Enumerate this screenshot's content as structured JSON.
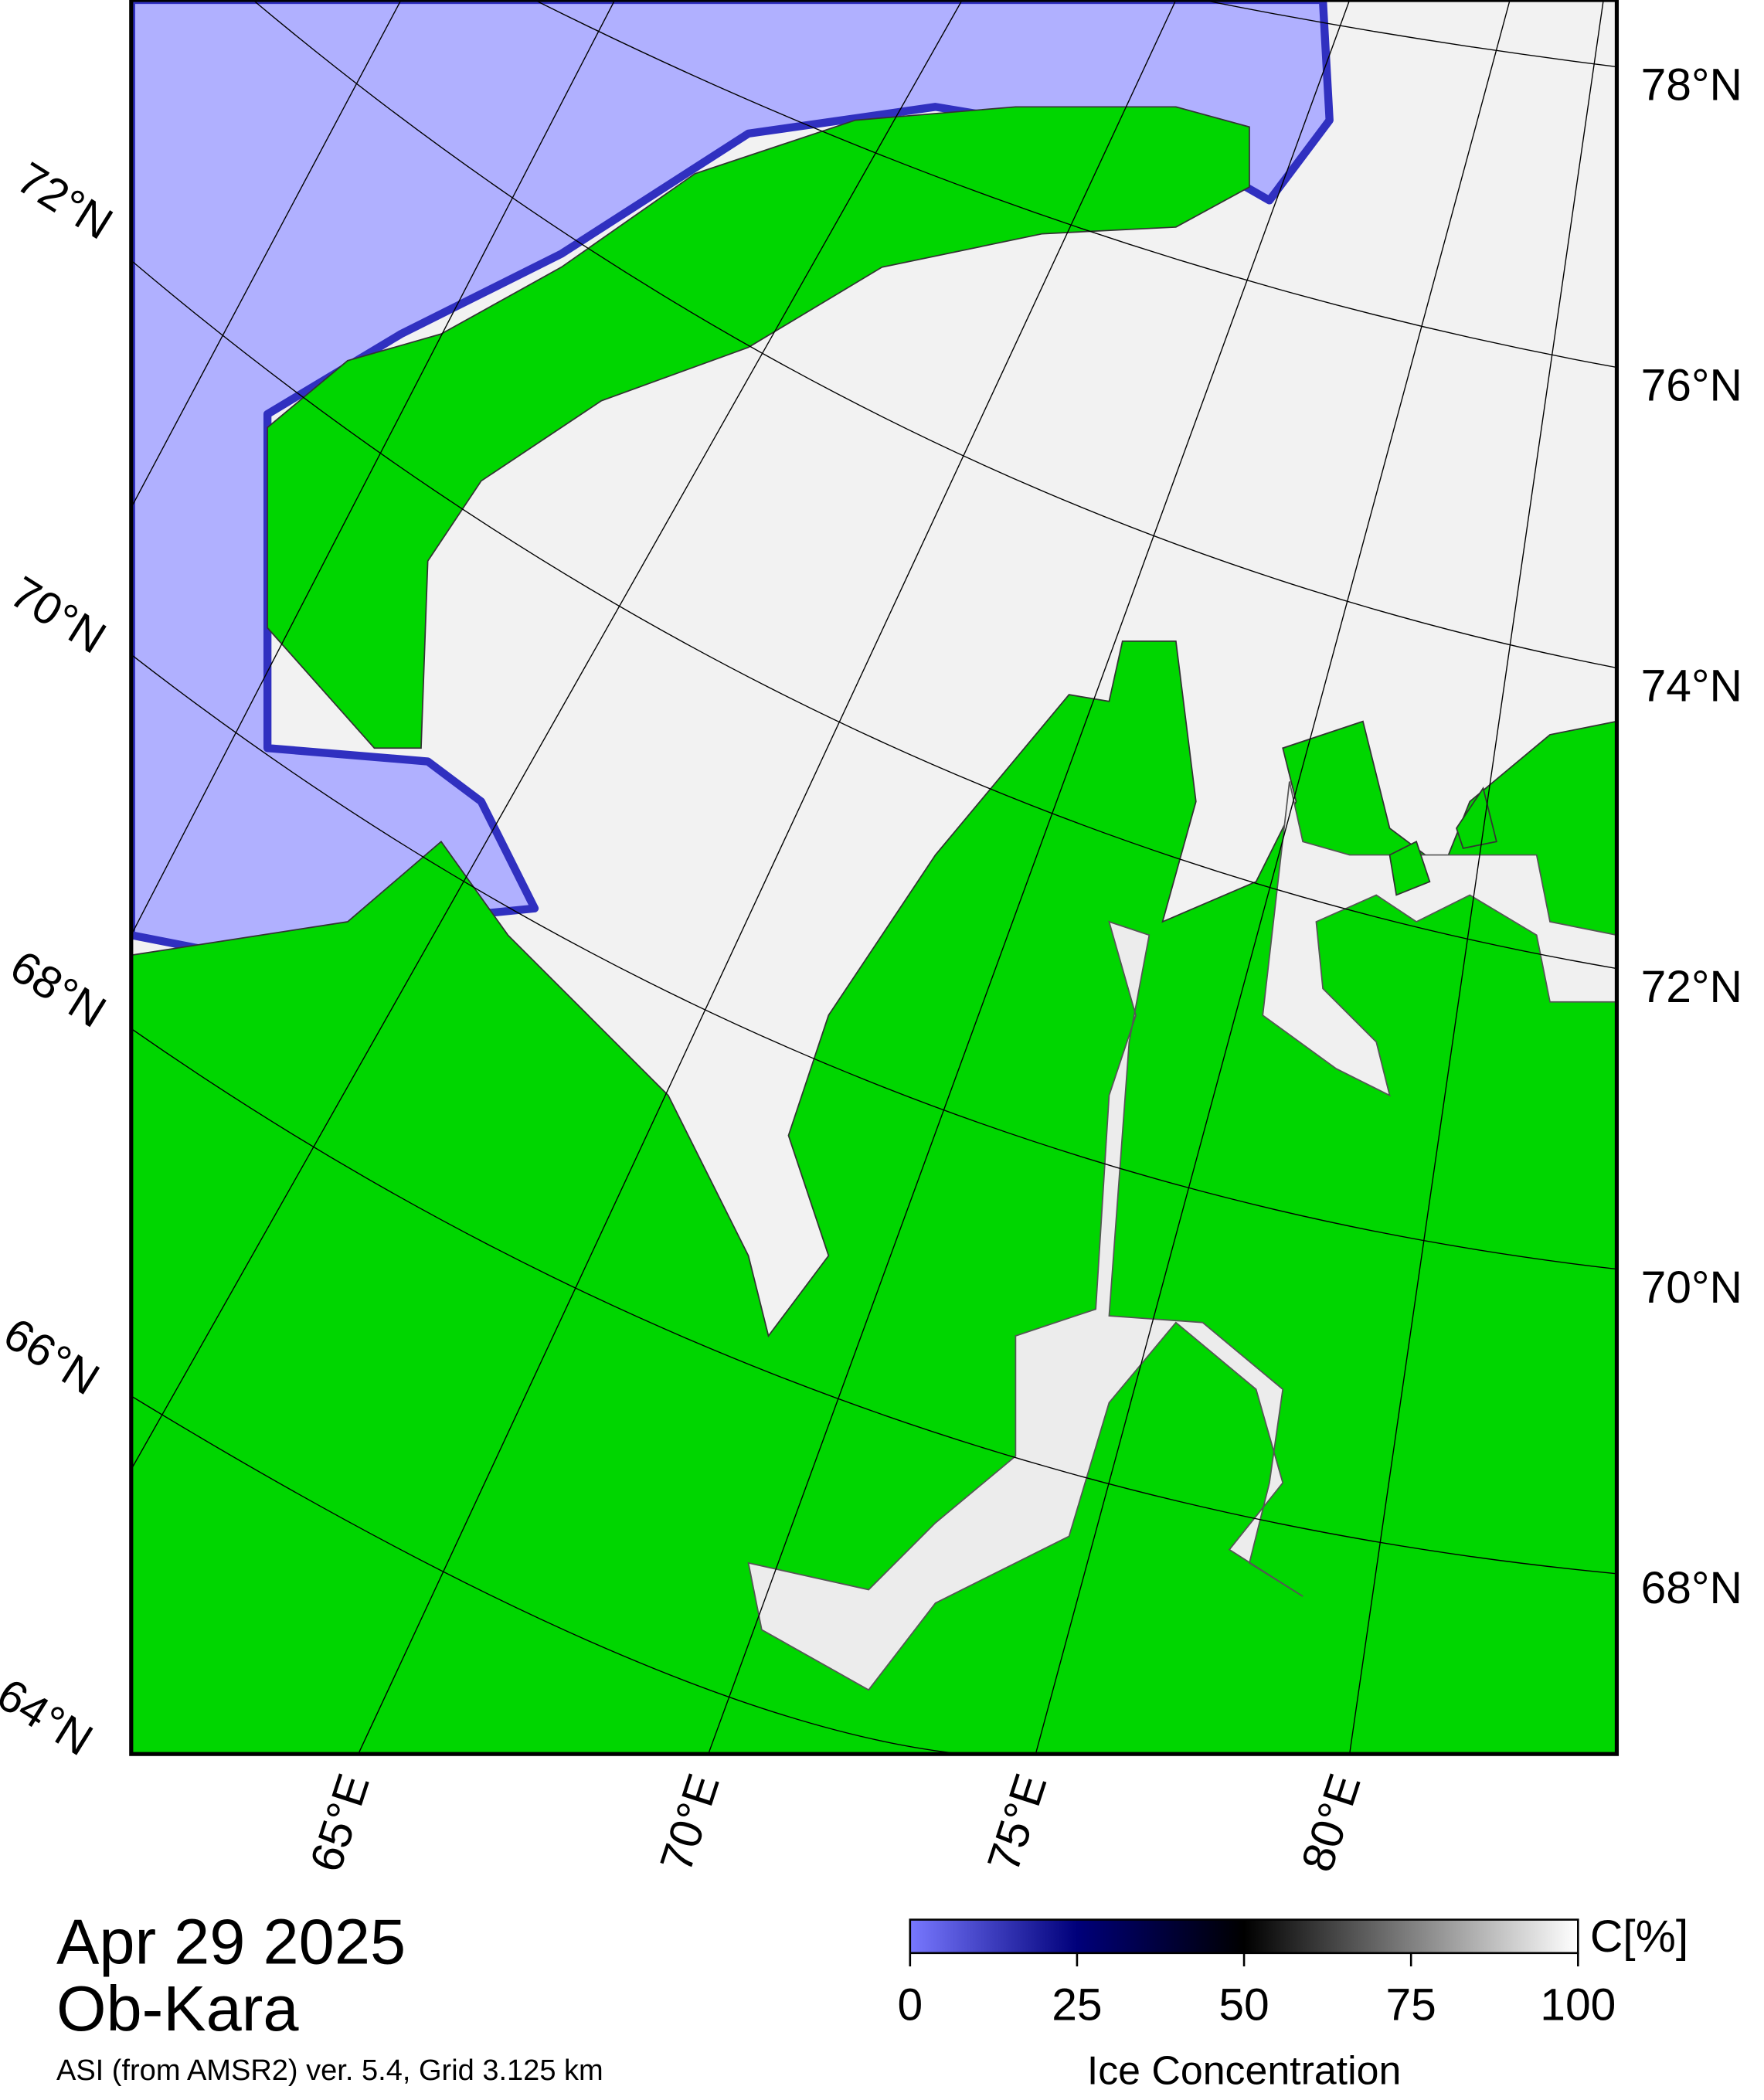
{
  "map": {
    "latitude_labels_left": [
      "72°N",
      "70°N",
      "68°N",
      "66°N",
      "64°N"
    ],
    "latitude_labels_right": [
      "78°N",
      "76°N",
      "74°N",
      "72°N",
      "70°N",
      "68°N"
    ],
    "longitude_labels": [
      "65°E",
      "70°E",
      "75°E",
      "80°E"
    ]
  },
  "caption": {
    "date": "Apr 29 2025",
    "region": "Ob-Kara",
    "source": "ASI (from AMSR2) ver. 5.4,  Grid 3.125 km"
  },
  "colorbar": {
    "range": [
      0,
      100
    ],
    "ticks": [
      0,
      25,
      50,
      75,
      100
    ],
    "unit_label": "C[%]",
    "label": "Ice Concentration"
  }
}
